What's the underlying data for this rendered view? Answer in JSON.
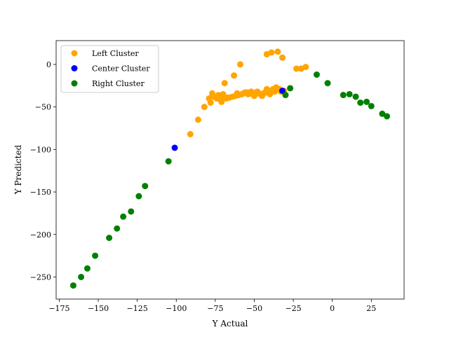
{
  "chart_data": {
    "type": "scatter",
    "title": "",
    "xlabel": "Y Actual",
    "ylabel": "Y Predicted",
    "xlim": [
      -177,
      46
    ],
    "ylim": [
      -276,
      28
    ],
    "x_ticks": [
      -175,
      -150,
      -125,
      -100,
      -75,
      -50,
      -25,
      0,
      25
    ],
    "y_ticks": [
      0,
      -50,
      -100,
      -150,
      -200,
      -250
    ],
    "x_tick_labels": [
      "−175",
      "−150",
      "−125",
      "−100",
      "−75",
      "−50",
      "−25",
      "0",
      "25"
    ],
    "y_tick_labels": [
      "0",
      "−50",
      "−100",
      "−150",
      "−200",
      "−250"
    ],
    "grid": false,
    "legend_position": "top-left",
    "series": [
      {
        "name": "Left Cluster",
        "color": "#ffa500",
        "points": [
          [
            -91,
            -82
          ],
          [
            -86,
            -65
          ],
          [
            -82,
            -50
          ],
          [
            -79,
            -40
          ],
          [
            -78,
            -45
          ],
          [
            -77,
            -34
          ],
          [
            -76,
            -38
          ],
          [
            -75,
            -38
          ],
          [
            -74,
            -40
          ],
          [
            -73,
            -36
          ],
          [
            -72,
            -41
          ],
          [
            -71,
            -44
          ],
          [
            -70,
            -35
          ],
          [
            -69,
            -22
          ],
          [
            -69,
            -39
          ],
          [
            -68,
            -40
          ],
          [
            -67,
            -39
          ],
          [
            -66,
            -39
          ],
          [
            -64,
            -38
          ],
          [
            -63,
            -13
          ],
          [
            -62,
            -37
          ],
          [
            -61,
            -34
          ],
          [
            -60,
            -36
          ],
          [
            -59,
            0
          ],
          [
            -58,
            -35
          ],
          [
            -57,
            -34
          ],
          [
            -56,
            -33
          ],
          [
            -55,
            -33
          ],
          [
            -54,
            -35
          ],
          [
            -53,
            -33
          ],
          [
            -52,
            -32
          ],
          [
            -51,
            -35
          ],
          [
            -50,
            -37
          ],
          [
            -49,
            -33
          ],
          [
            -48,
            -32
          ],
          [
            -47,
            -34
          ],
          [
            -46,
            -35
          ],
          [
            -45,
            -37
          ],
          [
            -44,
            -34
          ],
          [
            -43,
            -33
          ],
          [
            -42,
            -29
          ],
          [
            -42,
            12
          ],
          [
            -41,
            -31
          ],
          [
            -40,
            -35
          ],
          [
            -39,
            14
          ],
          [
            -39,
            -31
          ],
          [
            -38,
            -29
          ],
          [
            -37,
            -32
          ],
          [
            -36,
            -27
          ],
          [
            -35,
            15
          ],
          [
            -34,
            -29
          ],
          [
            -33,
            -32
          ],
          [
            -32,
            8
          ],
          [
            -31,
            -31
          ],
          [
            -23,
            -5
          ],
          [
            -20,
            -5
          ],
          [
            -17,
            -3
          ]
        ]
      },
      {
        "name": "Center Cluster",
        "color": "#0000ff",
        "points": [
          [
            -101,
            -98
          ],
          [
            -32,
            -31
          ]
        ]
      },
      {
        "name": "Right Cluster",
        "color": "#008000",
        "points": [
          [
            -166,
            -260
          ],
          [
            -161,
            -250
          ],
          [
            -157,
            -240
          ],
          [
            -152,
            -225
          ],
          [
            -143,
            -204
          ],
          [
            -138,
            -193
          ],
          [
            -134,
            -179
          ],
          [
            -129,
            -173
          ],
          [
            -124,
            -155
          ],
          [
            -120,
            -143
          ],
          [
            -105,
            -114
          ],
          [
            -30,
            -36
          ],
          [
            -27,
            -28
          ],
          [
            -10,
            -12
          ],
          [
            -3,
            -22
          ],
          [
            7,
            -36
          ],
          [
            11,
            -35
          ],
          [
            15,
            -38
          ],
          [
            18,
            -45
          ],
          [
            22,
            -44
          ],
          [
            25,
            -49
          ],
          [
            32,
            -58
          ],
          [
            35,
            -61
          ]
        ]
      }
    ]
  }
}
